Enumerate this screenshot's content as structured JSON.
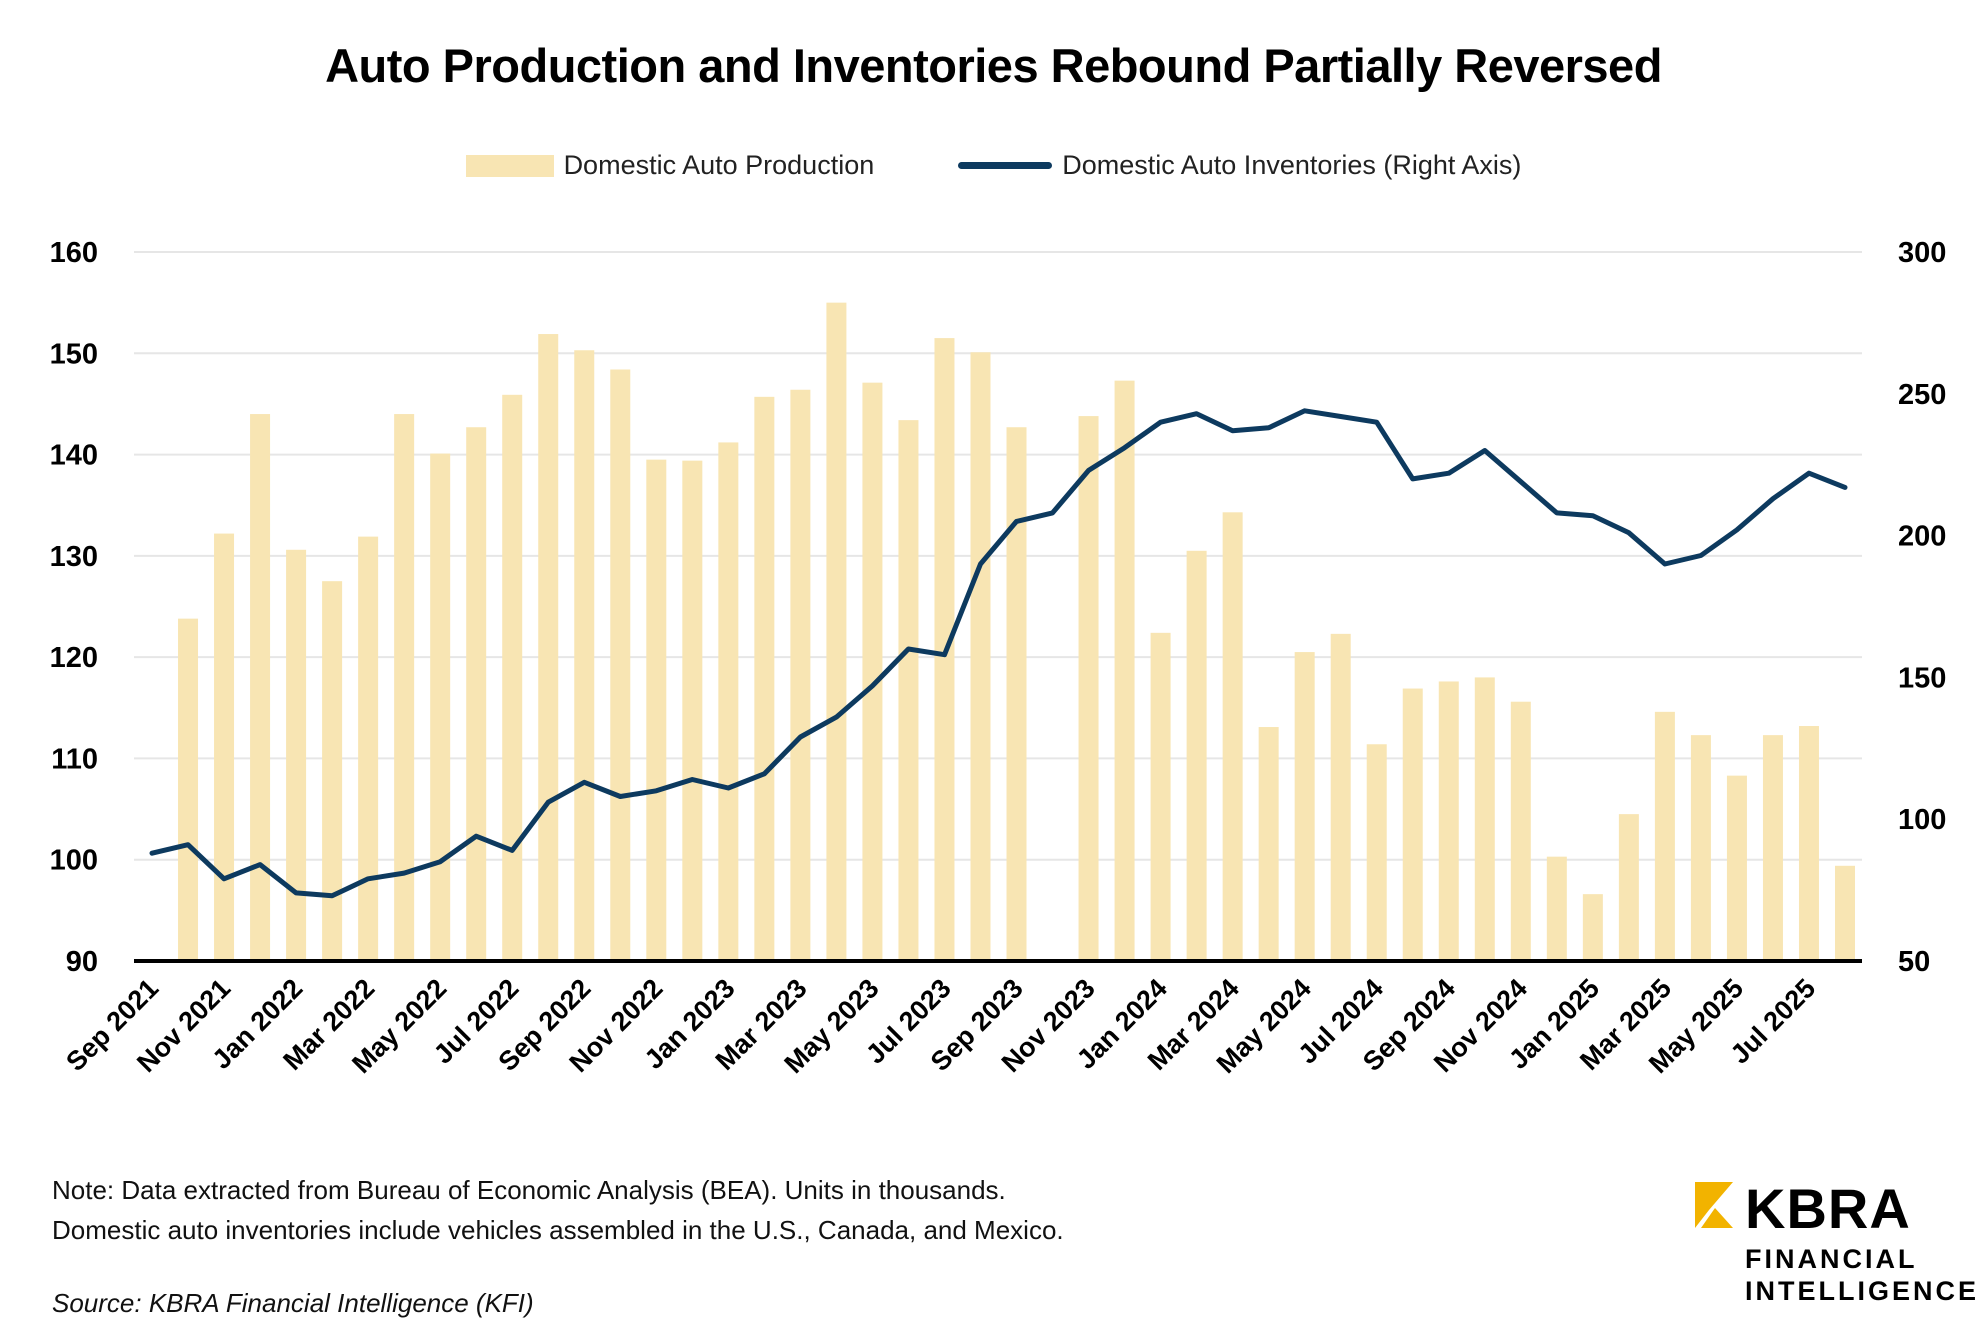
{
  "title": "Auto Production and Inventories Rebound Partially Reversed",
  "legend": {
    "bar_label": "Domestic Auto Production",
    "line_label": "Domestic Auto Inventories (Right Axis)"
  },
  "footer": {
    "note_line1": "Note: Data extracted from Bureau of Economic Analysis (BEA). Units in thousands.",
    "note_line2": "Domestic auto inventories include vehicles assembled in the U.S., Canada, and Mexico.",
    "source": "Source: KBRA Financial Intelligence (KFI)"
  },
  "logo": {
    "name": "KBRA",
    "line1": "FINANCIAL",
    "line2": "INTELLIGENCE",
    "accent_color": "#F2B300"
  },
  "chart_data": {
    "type": "bar",
    "title": "Auto Production and Inventories Rebound Partially Reversed",
    "xlabel": "",
    "ylabel": "",
    "y2label": "",
    "ylim": [
      90,
      160
    ],
    "y2lim": [
      50,
      300
    ],
    "yticks": [
      90,
      100,
      110,
      120,
      130,
      140,
      150,
      160
    ],
    "y2ticks": [
      50,
      100,
      150,
      200,
      250,
      300
    ],
    "grid": true,
    "legend_position": "top-center",
    "colors": {
      "bar": "#F8E5B3",
      "line": "#0D3A5F",
      "axis": "#000000",
      "grid": "#E6E6E6"
    },
    "x": [
      "Sep 2021",
      "Oct 2021",
      "Nov 2021",
      "Dec 2021",
      "Jan 2022",
      "Feb 2022",
      "Mar 2022",
      "Apr 2022",
      "May 2022",
      "Jun 2022",
      "Jul 2022",
      "Aug 2022",
      "Sep 2022",
      "Oct 2022",
      "Nov 2022",
      "Dec 2022",
      "Jan 2023",
      "Feb 2023",
      "Mar 2023",
      "Apr 2023",
      "May 2023",
      "Jun 2023",
      "Jul 2023",
      "Aug 2023",
      "Sep 2023",
      "Oct 2023",
      "Nov 2023",
      "Dec 2023",
      "Jan 2024",
      "Feb 2024",
      "Mar 2024",
      "Apr 2024",
      "May 2024",
      "Jun 2024",
      "Jul 2024",
      "Aug 2024",
      "Sep 2024",
      "Oct 2024",
      "Nov 2024",
      "Dec 2024",
      "Jan 2025",
      "Feb 2025",
      "Mar 2025",
      "Apr 2025",
      "May 2025",
      "Jun 2025",
      "Jul 2025",
      "Aug 2025"
    ],
    "xtick_labels": [
      "Sep 2021",
      "Nov 2021",
      "Jan 2022",
      "Mar 2022",
      "May 2022",
      "Jul 2022",
      "Sep 2022",
      "Nov 2022",
      "Jan 2023",
      "Mar 2023",
      "May 2023",
      "Jul 2023",
      "Sep 2023",
      "Nov 2023",
      "Jan 2024",
      "Mar 2024",
      "May 2024",
      "Jul 2024",
      "Sep 2024",
      "Nov 2024",
      "Jan 2025",
      "Mar 2025",
      "May 2025",
      "Jul 2025"
    ],
    "series": [
      {
        "name": "Domestic Auto Production",
        "type": "bar",
        "axis": "left",
        "values": [
          null,
          123.8,
          132.2,
          144.0,
          130.6,
          127.5,
          131.9,
          144.0,
          140.1,
          142.7,
          145.9,
          151.9,
          150.3,
          148.4,
          139.5,
          139.4,
          141.2,
          145.7,
          146.4,
          155.0,
          147.1,
          143.4,
          151.5,
          150.1,
          142.7,
          null,
          143.8,
          147.3,
          122.4,
          130.5,
          134.3,
          113.1,
          120.5,
          122.3,
          111.4,
          116.9,
          117.6,
          118.0,
          115.6,
          100.3,
          96.6,
          104.5,
          114.6,
          112.3,
          108.3,
          112.3,
          113.2,
          99.4
        ]
      },
      {
        "name": "Domestic Auto Inventories (Right Axis)",
        "type": "line",
        "axis": "right",
        "values": [
          88,
          91,
          79,
          84,
          74,
          73,
          79,
          81,
          85,
          94,
          89,
          106,
          113,
          108,
          110,
          114,
          111,
          116,
          129,
          136,
          147,
          160,
          158,
          190,
          205,
          208,
          223,
          231,
          240,
          243,
          237,
          238,
          244,
          242,
          240,
          220,
          222,
          230,
          219,
          208,
          207,
          201,
          190,
          193,
          202,
          213,
          222,
          217
        ]
      }
    ]
  }
}
